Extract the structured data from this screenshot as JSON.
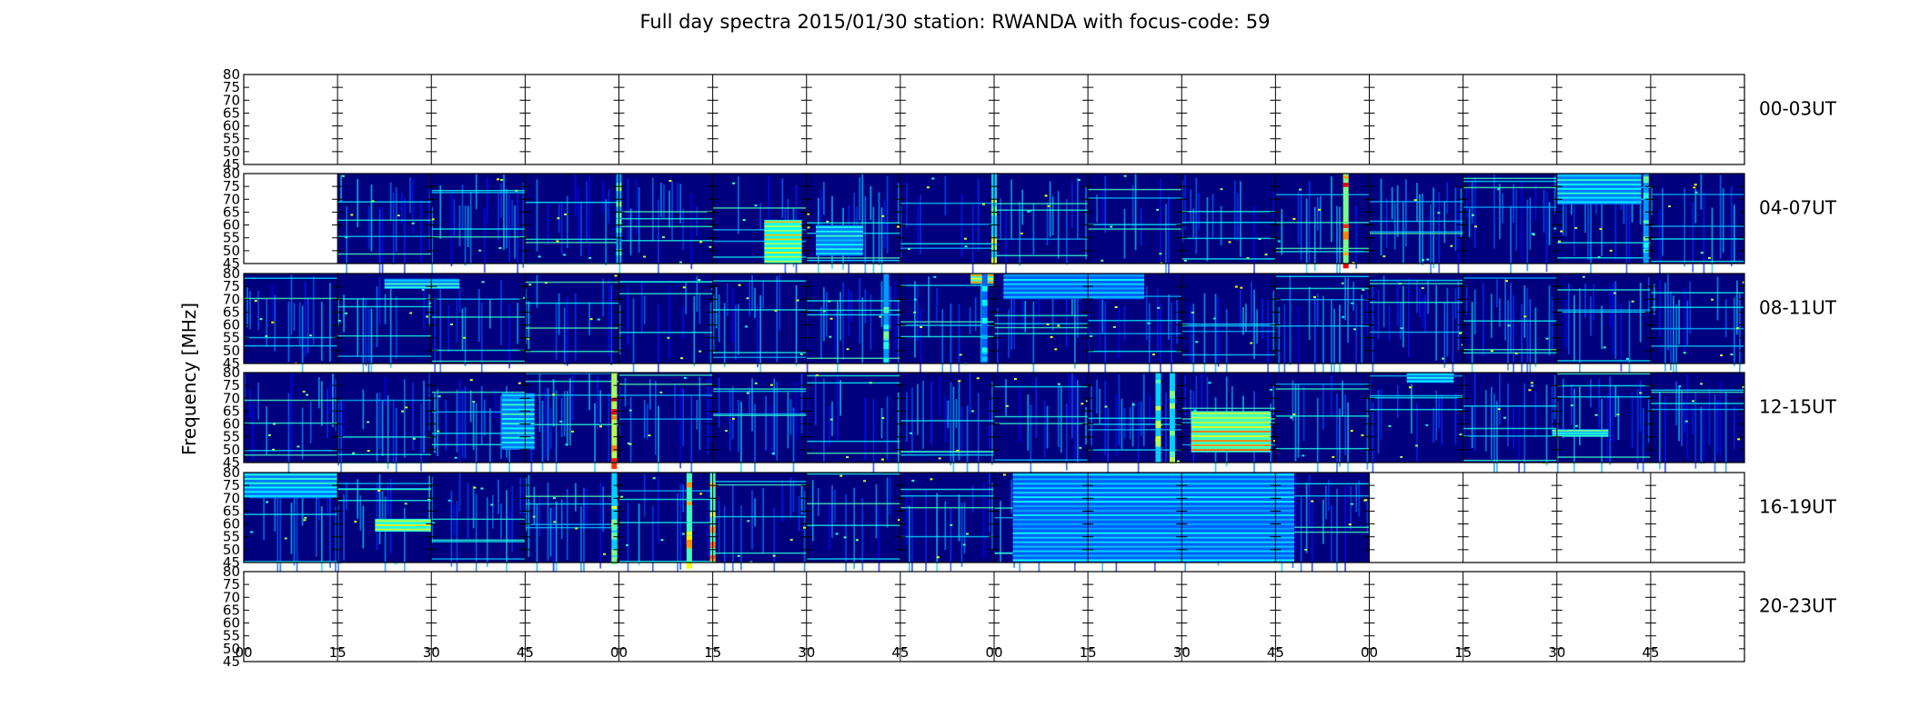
{
  "chart_data": {
    "type": "heatmap",
    "title": "Full day spectra 2015/01/30 station: RWANDA with focus-code: 59",
    "ylabel": "Frequency [MHz]",
    "y_ticks": [
      "80",
      "75",
      "70",
      "65",
      "60",
      "55",
      "50",
      "45"
    ],
    "ylim": [
      45,
      80
    ],
    "x_ticks": [
      "00",
      "15",
      "30",
      "45",
      "00",
      "15",
      "30",
      "45",
      "00",
      "15",
      "30",
      "45",
      "00",
      "15",
      "30",
      "45"
    ],
    "segments_per_row": 16,
    "segment_minutes": 15,
    "colormap": "jet",
    "colors": {
      "low": "#00007f",
      "mid": "#0040ff",
      "high": "#00ffff",
      "peak": "#ffff00",
      "max": "#ff0000",
      "empty": "#ffffff"
    },
    "rows": [
      {
        "label": "00-03UT",
        "data_segments": [],
        "hot_columns": [],
        "hot_blocks": []
      },
      {
        "label": "04-07UT",
        "data_segments": [
          1,
          2,
          3,
          4,
          5,
          6,
          7,
          8,
          9,
          10,
          11,
          12,
          13,
          14,
          15
        ],
        "hot_columns": [
          [
            4.0,
            0.5
          ],
          [
            8.0,
            0.6
          ],
          [
            11.75,
            0.9
          ],
          [
            14.95,
            0.5
          ]
        ],
        "hot_blocks": [
          [
            5.55,
            0.4,
            45,
            62,
            0.7
          ],
          [
            6.1,
            0.5,
            48,
            60,
            0.45
          ],
          [
            14.0,
            0.9,
            68,
            80,
            0.45
          ]
        ]
      },
      {
        "label": "08-11UT",
        "data_segments": [
          0,
          1,
          2,
          3,
          4,
          5,
          6,
          7,
          8,
          9,
          10,
          11,
          12,
          13,
          14,
          15
        ],
        "hot_columns": [
          [
            6.85,
            0.5
          ],
          [
            7.9,
            0.4
          ]
        ],
        "hot_blocks": [
          [
            7.75,
            0.25,
            76,
            80,
            0.8
          ],
          [
            1.5,
            0.8,
            74,
            78,
            0.45
          ],
          [
            8.1,
            1.5,
            70,
            80,
            0.4
          ]
        ]
      },
      {
        "label": "12-15UT",
        "data_segments": [
          0,
          1,
          2,
          3,
          4,
          5,
          6,
          7,
          8,
          9,
          10,
          11,
          12,
          13,
          14,
          15
        ],
        "hot_columns": [
          [
            3.95,
            1.0
          ],
          [
            9.75,
            0.6
          ],
          [
            9.9,
            0.6
          ]
        ],
        "hot_blocks": [
          [
            10.1,
            0.85,
            49,
            65,
            0.8
          ],
          [
            2.75,
            0.35,
            50,
            72,
            0.45
          ],
          [
            13.95,
            0.6,
            55,
            58,
            0.5
          ],
          [
            12.4,
            0.5,
            76,
            80,
            0.45
          ]
        ]
      },
      {
        "label": "16-19UT",
        "data_segments": [
          0,
          1,
          2,
          3,
          4,
          5,
          6,
          7,
          8,
          9,
          10,
          11
        ],
        "hot_columns": [
          [
            3.95,
            0.6
          ],
          [
            4.75,
            0.8
          ],
          [
            5.0,
            0.8
          ]
        ],
        "hot_blocks": [
          [
            1.4,
            0.6,
            57,
            62,
            0.75
          ],
          [
            0.0,
            1.0,
            70,
            80,
            0.45
          ],
          [
            8.2,
            3.0,
            45,
            80,
            0.4
          ]
        ]
      },
      {
        "label": "20-23UT",
        "data_segments": [],
        "hot_columns": [],
        "hot_blocks": []
      }
    ]
  }
}
